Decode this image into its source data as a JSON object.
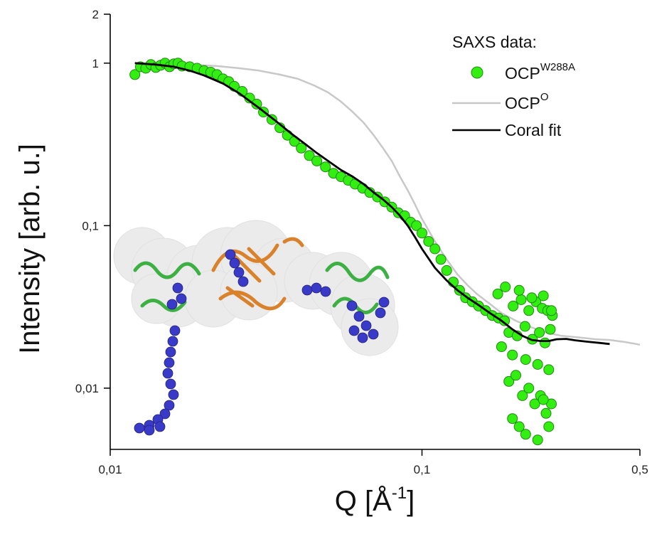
{
  "chart_data": {
    "type": "scatter",
    "xlabel": "Q [Å",
    "xlabel_sup": "-1",
    "xlabel_end": "]",
    "ylabel": "Intensity [arb. u.]",
    "xscale": "log",
    "yscale": "log",
    "xlim": [
      0.01,
      0.5
    ],
    "ylim": [
      0.0042,
      2
    ],
    "x_ticks": [
      {
        "value": 0.01,
        "label": "0,01"
      },
      {
        "value": 0.1,
        "label": "0,1"
      },
      {
        "value": 0.5,
        "label": "0,5"
      }
    ],
    "y_ticks": [
      {
        "value": 0.01,
        "label": "0,01"
      },
      {
        "value": 0.1,
        "label": "0,1"
      },
      {
        "value": 1,
        "label": "1"
      },
      {
        "value": 2,
        "label": "2"
      }
    ],
    "legend": {
      "title": "SAXS data:",
      "placement": "top-right"
    },
    "series": [
      {
        "name": "OCP",
        "name_sup": "W288A",
        "kind": "scatter",
        "color": "#33ee11",
        "edge": "#1f8a10",
        "x": [
          0.012,
          0.0125,
          0.013,
          0.0135,
          0.014,
          0.0145,
          0.015,
          0.0155,
          0.016,
          0.0165,
          0.017,
          0.018,
          0.019,
          0.02,
          0.021,
          0.022,
          0.023,
          0.024,
          0.025,
          0.0265,
          0.028,
          0.0295,
          0.031,
          0.033,
          0.035,
          0.037,
          0.039,
          0.041,
          0.0435,
          0.046,
          0.049,
          0.052,
          0.055,
          0.058,
          0.061,
          0.0645,
          0.068,
          0.072,
          0.076,
          0.08,
          0.084,
          0.088,
          0.092,
          0.096,
          0.1,
          0.105,
          0.11,
          0.115,
          0.12,
          0.126,
          0.132,
          0.138,
          0.145,
          0.152,
          0.16,
          0.168,
          0.176,
          0.184,
          0.19,
          0.196,
          0.202,
          0.208,
          0.214,
          0.22,
          0.226,
          0.232,
          0.238,
          0.243,
          0.248,
          0.253,
          0.258,
          0.262,
          0.175,
          0.18,
          0.185,
          0.195,
          0.205,
          0.215,
          0.225,
          0.235,
          0.245,
          0.255,
          0.26,
          0.19,
          0.2,
          0.21,
          0.22,
          0.23,
          0.24,
          0.25,
          0.26,
          0.195,
          0.215,
          0.235,
          0.255,
          0.205,
          0.245
        ],
        "y": [
          0.85,
          0.95,
          0.93,
          0.98,
          0.94,
          0.97,
          1.0,
          0.95,
          0.99,
          1.0,
          0.96,
          0.95,
          0.93,
          0.9,
          0.88,
          0.85,
          0.8,
          0.77,
          0.72,
          0.67,
          0.61,
          0.56,
          0.5,
          0.45,
          0.4,
          0.36,
          0.33,
          0.3,
          0.27,
          0.25,
          0.23,
          0.21,
          0.2,
          0.19,
          0.18,
          0.17,
          0.16,
          0.15,
          0.14,
          0.13,
          0.12,
          0.115,
          0.105,
          0.1,
          0.09,
          0.08,
          0.072,
          0.062,
          0.053,
          0.045,
          0.04,
          0.036,
          0.034,
          0.032,
          0.03,
          0.028,
          0.027,
          0.026,
          0.022,
          0.032,
          0.021,
          0.035,
          0.024,
          0.03,
          0.02,
          0.034,
          0.022,
          0.031,
          0.019,
          0.03,
          0.023,
          0.028,
          0.038,
          0.018,
          0.042,
          0.016,
          0.04,
          0.015,
          0.036,
          0.014,
          0.037,
          0.013,
          0.03,
          0.011,
          0.012,
          0.009,
          0.01,
          0.008,
          0.009,
          0.007,
          0.008,
          0.0065,
          0.0052,
          0.0048,
          0.0058,
          0.0058,
          0.0085
        ]
      },
      {
        "name": "OCP",
        "name_sup": "O",
        "kind": "line",
        "color": "#c8c8c8",
        "x": [
          0.012,
          0.015,
          0.018,
          0.022,
          0.026,
          0.03,
          0.035,
          0.04,
          0.045,
          0.05,
          0.055,
          0.06,
          0.065,
          0.07,
          0.075,
          0.08,
          0.085,
          0.09,
          0.095,
          0.1,
          0.11,
          0.12,
          0.13,
          0.14,
          0.15,
          0.165,
          0.18,
          0.2,
          0.22,
          0.25,
          0.28,
          0.32,
          0.36,
          0.4,
          0.45,
          0.5
        ],
        "y": [
          1.0,
          0.99,
          0.98,
          0.96,
          0.93,
          0.9,
          0.85,
          0.8,
          0.73,
          0.66,
          0.58,
          0.5,
          0.43,
          0.36,
          0.3,
          0.25,
          0.2,
          0.165,
          0.135,
          0.11,
          0.08,
          0.062,
          0.05,
          0.043,
          0.038,
          0.033,
          0.029,
          0.026,
          0.024,
          0.022,
          0.021,
          0.0205,
          0.02,
          0.0198,
          0.0192,
          0.0185
        ]
      },
      {
        "name": "Coral fit",
        "kind": "line",
        "color": "#000000",
        "x": [
          0.012,
          0.014,
          0.016,
          0.018,
          0.02,
          0.023,
          0.026,
          0.03,
          0.034,
          0.038,
          0.042,
          0.046,
          0.05,
          0.055,
          0.06,
          0.065,
          0.07,
          0.075,
          0.08,
          0.085,
          0.09,
          0.095,
          0.1,
          0.11,
          0.12,
          0.13,
          0.14,
          0.15,
          0.165,
          0.18,
          0.195,
          0.21,
          0.225,
          0.24,
          0.255,
          0.27,
          0.29,
          0.31,
          0.34,
          0.37,
          0.4
        ],
        "y": [
          1.0,
          0.98,
          0.95,
          0.9,
          0.84,
          0.75,
          0.65,
          0.53,
          0.44,
          0.37,
          0.32,
          0.28,
          0.25,
          0.22,
          0.2,
          0.18,
          0.16,
          0.145,
          0.13,
          0.115,
          0.1,
          0.085,
          0.072,
          0.055,
          0.046,
          0.04,
          0.036,
          0.033,
          0.029,
          0.026,
          0.023,
          0.021,
          0.0198,
          0.0195,
          0.0195,
          0.02,
          0.0201,
          0.0197,
          0.0193,
          0.019,
          0.0187
        ]
      }
    ],
    "inset": "protein-structure-rendering"
  },
  "colors": {
    "inset_green": "#3cb043",
    "inset_orange": "#d9822b",
    "inset_blue": "#3a3ac8",
    "inset_hull": "#dcdcdc"
  }
}
